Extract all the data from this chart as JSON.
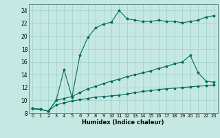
{
  "xlabel": "Humidex (Indice chaleur)",
  "bg_color": "#c6e8e2",
  "grid_color": "#9ecfca",
  "line_color": "#006b5e",
  "xlim": [
    -0.5,
    23.5
  ],
  "ylim": [
    8,
    25
  ],
  "yticks": [
    8,
    10,
    12,
    14,
    16,
    18,
    20,
    22,
    24
  ],
  "xticks": [
    0,
    1,
    2,
    3,
    4,
    5,
    6,
    7,
    8,
    9,
    10,
    11,
    12,
    13,
    14,
    15,
    16,
    17,
    18,
    19,
    20,
    21,
    22,
    23
  ],
  "line_top": [
    8.7,
    8.6,
    8.3,
    10.0,
    14.8,
    10.5,
    17.0,
    19.8,
    21.3,
    21.9,
    22.2,
    24.0,
    22.7,
    22.5,
    22.3,
    22.3,
    22.5,
    22.3,
    22.3,
    22.1,
    22.3,
    22.5,
    23.0,
    23.2
  ],
  "line_mid": [
    8.7,
    8.6,
    8.3,
    10.0,
    10.3,
    10.6,
    11.2,
    11.8,
    12.2,
    12.6,
    13.0,
    13.3,
    13.7,
    14.0,
    14.3,
    14.6,
    15.0,
    15.3,
    15.7,
    16.0,
    17.0,
    14.3,
    13.0,
    12.8
  ],
  "line_bot": [
    8.7,
    8.6,
    8.3,
    9.3,
    9.6,
    9.9,
    10.1,
    10.3,
    10.5,
    10.6,
    10.7,
    10.8,
    11.0,
    11.2,
    11.4,
    11.5,
    11.7,
    11.8,
    11.9,
    12.0,
    12.1,
    12.2,
    12.3,
    12.4
  ]
}
